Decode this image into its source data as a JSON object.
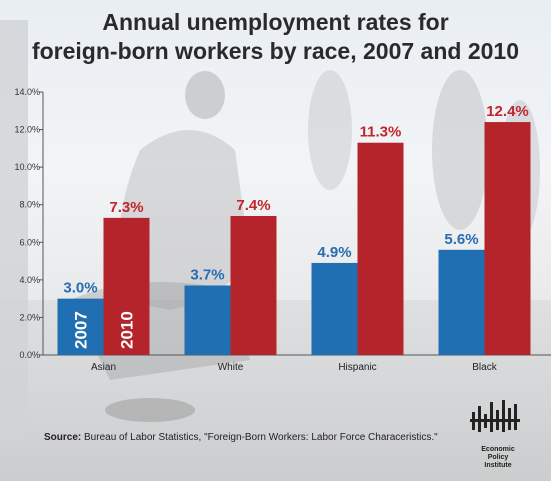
{
  "title_line1": "Annual unemployment rates for",
  "title_line2": "foreign-born workers by race, 2007 and 2010",
  "source_label": "Source:",
  "source_text": " Bureau of Labor Statistics, \"Foreign-Born Workers: Labor Force Characeristics.\"",
  "logo_text": [
    "Economic",
    "Policy",
    "Institute"
  ],
  "colors": {
    "y2007": "#1f6fb2",
    "y2010": "#b5242b",
    "label2007": "#2a6cb0",
    "label2010": "#c0262d"
  },
  "chart_data": {
    "type": "bar",
    "title": "Annual unemployment rates for foreign-born workers by race, 2007 and 2010",
    "categories": [
      "Asian",
      "White",
      "Hispanic",
      "Black"
    ],
    "series": [
      {
        "name": "2007",
        "values": [
          3.0,
          3.7,
          4.9,
          5.6
        ],
        "labels": [
          "3.0%",
          "3.7%",
          "4.9%",
          "5.6%"
        ]
      },
      {
        "name": "2010",
        "values": [
          7.3,
          7.4,
          11.3,
          12.4
        ],
        "labels": [
          "7.3%",
          "7.4%",
          "11.3%",
          "12.4%"
        ]
      }
    ],
    "ylim": [
      0,
      14
    ],
    "yticks": [
      "0.0%",
      "2.0%",
      "4.0%",
      "6.0%",
      "8.0%",
      "10.0%",
      "12.0%",
      "14.0%"
    ],
    "grid": false,
    "legend": "inside first category bars"
  }
}
